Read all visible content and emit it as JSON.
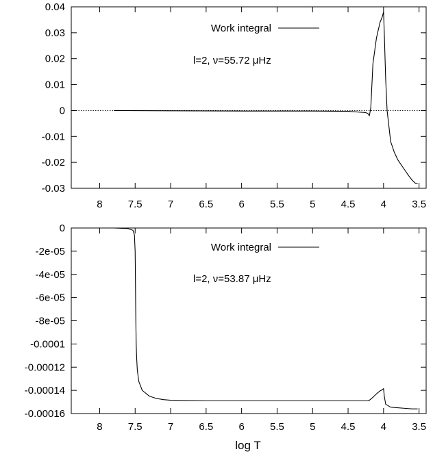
{
  "chart_data": [
    {
      "type": "line",
      "x_reversed": true,
      "xlim": [
        8.4,
        3.4
      ],
      "ylim": [
        -0.03,
        0.04
      ],
      "xticks": [
        8,
        7.5,
        7,
        6.5,
        6,
        5.5,
        5,
        4.5,
        4,
        3.5
      ],
      "xtick_labels": [
        "8",
        "7.5",
        "7",
        "6.5",
        "6",
        "5.5",
        "5",
        "4.5",
        "4",
        "3.5"
      ],
      "yticks": [
        0.04,
        0.03,
        0.02,
        0.01,
        0,
        -0.01,
        -0.02,
        -0.03
      ],
      "ytick_labels": [
        "0.04",
        "0.03",
        "0.02",
        "0.01",
        "0",
        "-0.01",
        "-0.02",
        "-0.03"
      ],
      "zero_line": true,
      "legend": "top-center",
      "annotation": "l=2, ν=55.72 μHz",
      "series": [
        {
          "name": "Work integral",
          "x": [
            7.8,
            7.0,
            6.0,
            5.0,
            4.5,
            4.25,
            4.22,
            4.2,
            4.18,
            4.15,
            4.1,
            4.05,
            4.02,
            4.0,
            3.99,
            3.97,
            3.95,
            3.9,
            3.85,
            3.8,
            3.75,
            3.7,
            3.65,
            3.6,
            3.55,
            3.52
          ],
          "y": [
            0.0,
            -0.0001,
            -0.0002,
            -0.0002,
            -0.0003,
            -0.0008,
            -0.0012,
            -0.002,
            0.001,
            0.018,
            0.028,
            0.034,
            0.036,
            0.038,
            0.03,
            0.012,
            0.0,
            -0.012,
            -0.016,
            -0.019,
            -0.021,
            -0.023,
            -0.025,
            -0.0268,
            -0.0281,
            -0.0282
          ]
        }
      ]
    },
    {
      "type": "line",
      "x_reversed": true,
      "xlim": [
        8.4,
        3.4
      ],
      "ylim": [
        -0.00016,
        0
      ],
      "xticks": [
        8,
        7.5,
        7,
        6.5,
        6,
        5.5,
        5,
        4.5,
        4,
        3.5
      ],
      "xtick_labels": [
        "8",
        "7.5",
        "7",
        "6.5",
        "6",
        "5.5",
        "5",
        "4.5",
        "4",
        "3.5"
      ],
      "yticks": [
        0,
        -2e-05,
        -4e-05,
        -6e-05,
        -8e-05,
        -0.0001,
        -0.00012,
        -0.00014,
        -0.00016
      ],
      "ytick_labels": [
        "0",
        "-2e-05",
        "-4e-05",
        "-6e-05",
        "-8e-05",
        "-0.0001",
        "-0.00012",
        "-0.00014",
        "-0.00016"
      ],
      "xlabel": "log T",
      "legend": "top-center",
      "annotation": "l=2, ν=53.87 μHz",
      "series": [
        {
          "name": "Work integral",
          "x": [
            7.8,
            7.6,
            7.53,
            7.51,
            7.5,
            7.495,
            7.49,
            7.485,
            7.48,
            7.47,
            7.45,
            7.4,
            7.3,
            7.2,
            7.1,
            7.0,
            6.8,
            6.5,
            6.0,
            5.0,
            4.5,
            4.22,
            4.2,
            4.15,
            4.1,
            4.05,
            4.02,
            4.0,
            3.99,
            3.97,
            3.9,
            3.8,
            3.7,
            3.6,
            3.52
          ],
          "y": [
            0.0,
            -5e-07,
            -2e-06,
            -6e-06,
            -2e-05,
            -5e-05,
            -8e-05,
            -0.0001,
            -0.00011,
            -0.000122,
            -0.000132,
            -0.00014,
            -0.000145,
            -0.000147,
            -0.000148,
            -0.0001485,
            -0.0001488,
            -0.000149,
            -0.000149,
            -0.000149,
            -0.000149,
            -0.000149,
            -0.0001485,
            -0.000146,
            -0.000143,
            -0.0001405,
            -0.0001395,
            -0.0001385,
            -0.000145,
            -0.000152,
            -0.0001545,
            -0.000155,
            -0.0001555,
            -0.000156,
            -0.000156
          ]
        }
      ]
    }
  ]
}
